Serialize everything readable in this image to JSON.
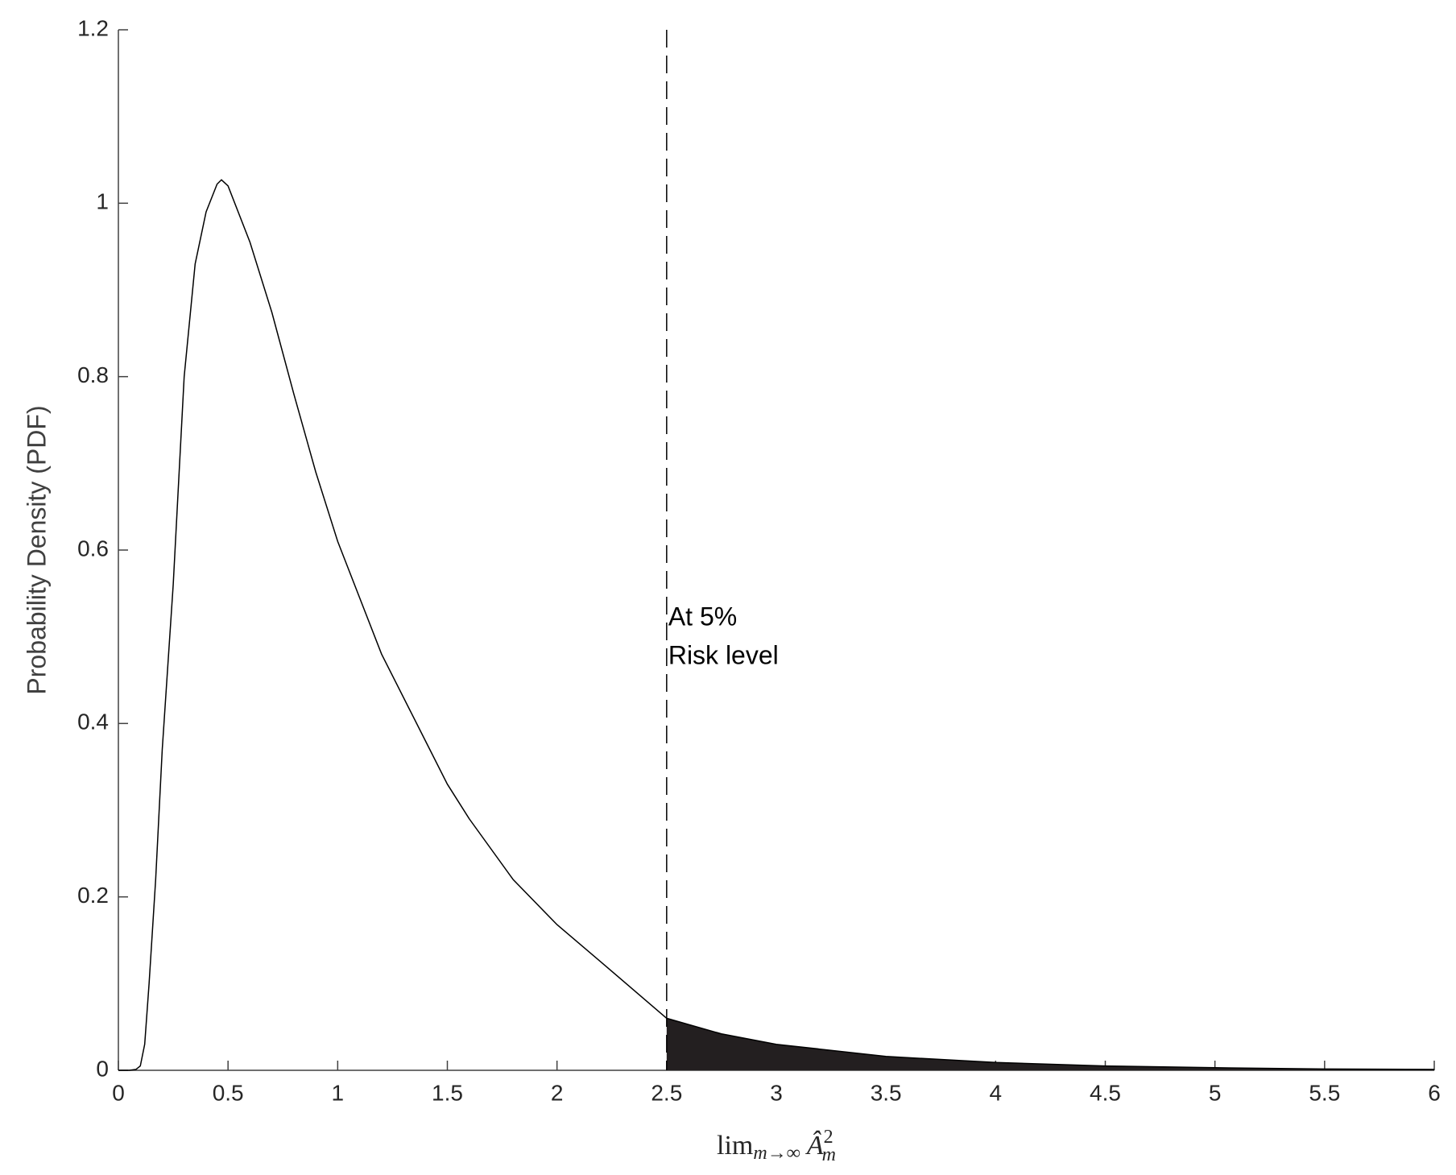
{
  "chart_data": {
    "type": "line",
    "y_label": "Probability Density (PDF)",
    "x_label": {
      "base": "lim",
      "sub": "m→∞",
      "var": "Â",
      "sup": "2",
      "var_sub": "m"
    },
    "x": [
      0,
      0.05,
      0.08,
      0.1,
      0.12,
      0.14,
      0.17,
      0.2,
      0.25,
      0.3,
      0.35,
      0.4,
      0.45,
      0.47,
      0.5,
      0.6,
      0.7,
      0.8,
      0.9,
      1.0,
      1.2,
      1.4,
      1.5,
      1.6,
      1.8,
      2.0,
      2.2,
      2.5,
      2.75,
      3.0,
      3.5,
      4.0,
      4.5,
      5.0,
      5.5,
      6.0
    ],
    "series": [
      {
        "color": "#000000",
        "values": [
          0,
          0,
          0.001,
          0.005,
          0.03,
          0.1,
          0.22,
          0.37,
          0.56,
          0.8,
          0.93,
          0.99,
          1.022,
          1.027,
          1.02,
          0.955,
          0.874,
          0.78,
          0.69,
          0.61,
          0.48,
          0.38,
          0.33,
          0.29,
          0.22,
          0.168,
          0.125,
          0.06,
          0.042,
          0.03,
          0.016,
          0.009,
          0.005,
          0.003,
          0.0015,
          0.001
        ]
      }
    ],
    "threshold": 2.5,
    "annotation": [
      "At 5%",
      "Risk level"
    ],
    "xlim": [
      0,
      6
    ],
    "xticks": [
      0,
      0.5,
      1,
      1.5,
      2,
      2.5,
      3,
      3.5,
      4,
      4.5,
      5,
      5.5,
      6
    ],
    "ylim": [
      0,
      1.2
    ],
    "yticks": [
      0,
      0.2,
      0.4,
      0.6,
      0.8,
      1,
      1.2
    ]
  }
}
